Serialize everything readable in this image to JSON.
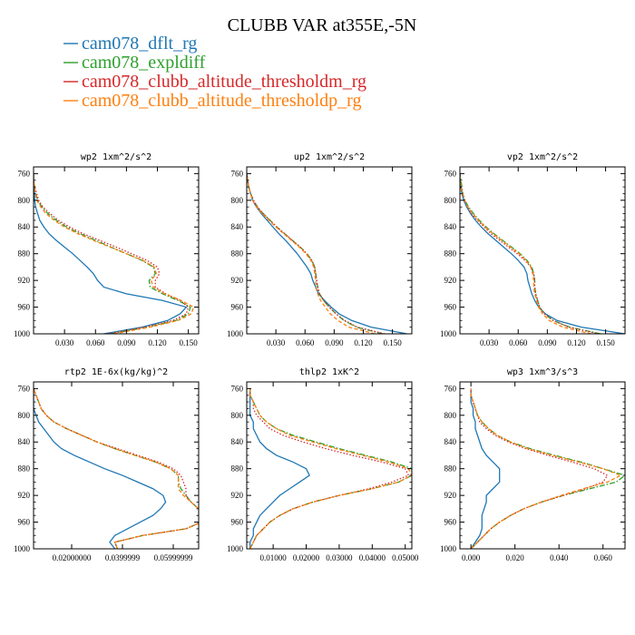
{
  "title": "CLUBB VAR at355E,-5N",
  "legend": [
    {
      "label": "cam078_dflt_rg",
      "color": "#1f77b4",
      "dash": "solid"
    },
    {
      "label": "cam078_expldiff",
      "color": "#2ca02c",
      "dash": "dashdot"
    },
    {
      "label": "cam078_clubb_altitude_thresholdm_rg",
      "color": "#d62728",
      "dash": "dotted"
    },
    {
      "label": "cam078_clubb_altitude_thresholdp_rg",
      "color": "#ff7f0e",
      "dash": "dashed"
    }
  ],
  "chart_data": [
    {
      "type": "line",
      "title": "wp2  1xm^2/s^2",
      "xlim": [
        0.0,
        0.16
      ],
      "ylim": [
        1000,
        750
      ],
      "xticks": [
        0.03,
        0.06,
        0.09,
        0.12,
        0.15
      ],
      "xtick_labels": [
        "0.030",
        "0.060",
        "0.090",
        "0.120",
        "0.150"
      ],
      "yticks": [
        760,
        800,
        840,
        880,
        920,
        960,
        1000
      ],
      "y": [
        1000,
        990,
        980,
        970,
        960,
        950,
        940,
        930,
        920,
        910,
        900,
        890,
        880,
        870,
        860,
        850,
        840,
        830,
        820,
        810,
        800,
        790,
        780,
        770,
        760
      ],
      "series": [
        {
          "values": [
            0.068,
            0.105,
            0.13,
            0.142,
            0.148,
            0.125,
            0.09,
            0.068,
            0.062,
            0.058,
            0.052,
            0.045,
            0.038,
            0.03,
            0.022,
            0.015,
            0.01,
            0.006,
            0.004,
            0.002,
            0.001,
            0.001,
            0.0,
            0.0,
            0.0
          ]
        },
        {
          "values": [
            0.075,
            0.11,
            0.138,
            0.15,
            0.152,
            0.14,
            0.125,
            0.113,
            0.112,
            0.118,
            0.116,
            0.105,
            0.09,
            0.075,
            0.06,
            0.045,
            0.032,
            0.022,
            0.014,
            0.008,
            0.004,
            0.002,
            0.001,
            0.0,
            0.0
          ]
        },
        {
          "values": [
            0.072,
            0.108,
            0.135,
            0.148,
            0.15,
            0.142,
            0.128,
            0.118,
            0.118,
            0.122,
            0.12,
            0.11,
            0.095,
            0.08,
            0.064,
            0.048,
            0.035,
            0.024,
            0.016,
            0.009,
            0.005,
            0.003,
            0.001,
            0.0,
            0.0
          ]
        },
        {
          "values": [
            0.078,
            0.113,
            0.14,
            0.153,
            0.155,
            0.143,
            0.127,
            0.116,
            0.114,
            0.119,
            0.117,
            0.106,
            0.09,
            0.074,
            0.058,
            0.043,
            0.03,
            0.02,
            0.012,
            0.007,
            0.003,
            0.002,
            0.001,
            0.0,
            0.0
          ]
        }
      ]
    },
    {
      "type": "line",
      "title": "up2  1xm^2/s^2",
      "xlim": [
        0.0,
        0.17
      ],
      "ylim": [
        1000,
        750
      ],
      "xticks": [
        0.03,
        0.06,
        0.09,
        0.12,
        0.15
      ],
      "xtick_labels": [
        "0.030",
        "0.060",
        "0.090",
        "0.120",
        "0.150"
      ],
      "yticks": [
        760,
        800,
        840,
        880,
        920,
        960,
        1000
      ],
      "y": [
        1000,
        990,
        980,
        970,
        960,
        950,
        940,
        930,
        920,
        910,
        900,
        890,
        880,
        870,
        860,
        850,
        840,
        830,
        820,
        810,
        800,
        790,
        780,
        770,
        760
      ],
      "series": [
        {
          "values": [
            0.165,
            0.128,
            0.108,
            0.095,
            0.087,
            0.08,
            0.074,
            0.071,
            0.068,
            0.066,
            0.062,
            0.057,
            0.052,
            0.046,
            0.04,
            0.033,
            0.027,
            0.021,
            0.015,
            0.01,
            0.006,
            0.004,
            0.002,
            0.001,
            0.0
          ]
        },
        {
          "values": [
            0.14,
            0.113,
            0.1,
            0.092,
            0.085,
            0.079,
            0.075,
            0.073,
            0.072,
            0.071,
            0.07,
            0.067,
            0.062,
            0.055,
            0.047,
            0.039,
            0.031,
            0.024,
            0.017,
            0.011,
            0.007,
            0.004,
            0.002,
            0.001,
            0.0
          ]
        },
        {
          "values": [
            0.142,
            0.114,
            0.101,
            0.092,
            0.085,
            0.079,
            0.075,
            0.073,
            0.072,
            0.071,
            0.07,
            0.067,
            0.062,
            0.055,
            0.047,
            0.039,
            0.031,
            0.024,
            0.017,
            0.011,
            0.007,
            0.004,
            0.002,
            0.001,
            0.0
          ]
        },
        {
          "values": [
            0.132,
            0.105,
            0.094,
            0.086,
            0.081,
            0.076,
            0.073,
            0.071,
            0.071,
            0.07,
            0.069,
            0.066,
            0.061,
            0.054,
            0.046,
            0.038,
            0.03,
            0.023,
            0.016,
            0.01,
            0.006,
            0.004,
            0.002,
            0.001,
            0.0
          ]
        }
      ]
    },
    {
      "type": "line",
      "title": "vp2  1xm^2/s^2",
      "xlim": [
        0.0,
        0.17
      ],
      "ylim": [
        1000,
        750
      ],
      "xticks": [
        0.03,
        0.06,
        0.09,
        0.12,
        0.15
      ],
      "xtick_labels": [
        "0.030",
        "0.060",
        "0.090",
        "0.120",
        "0.150"
      ],
      "yticks": [
        760,
        800,
        840,
        880,
        920,
        960,
        1000
      ],
      "y": [
        1000,
        990,
        980,
        970,
        960,
        950,
        940,
        930,
        920,
        910,
        900,
        890,
        880,
        870,
        860,
        850,
        840,
        830,
        820,
        810,
        800,
        790,
        780,
        770,
        760
      ],
      "series": [
        {
          "values": [
            0.17,
            0.125,
            0.1,
            0.088,
            0.081,
            0.077,
            0.074,
            0.072,
            0.07,
            0.069,
            0.066,
            0.06,
            0.053,
            0.045,
            0.037,
            0.029,
            0.022,
            0.016,
            0.011,
            0.007,
            0.004,
            0.002,
            0.001,
            0.0,
            0.0
          ]
        },
        {
          "values": [
            0.145,
            0.113,
            0.096,
            0.087,
            0.082,
            0.08,
            0.078,
            0.077,
            0.077,
            0.076,
            0.074,
            0.069,
            0.062,
            0.053,
            0.044,
            0.035,
            0.027,
            0.02,
            0.014,
            0.009,
            0.005,
            0.003,
            0.002,
            0.001,
            0.0
          ]
        },
        {
          "values": [
            0.143,
            0.112,
            0.096,
            0.087,
            0.082,
            0.08,
            0.078,
            0.077,
            0.077,
            0.076,
            0.073,
            0.067,
            0.059,
            0.05,
            0.041,
            0.032,
            0.025,
            0.018,
            0.012,
            0.008,
            0.005,
            0.003,
            0.001,
            0.0,
            0.0
          ]
        },
        {
          "values": [
            0.135,
            0.106,
            0.092,
            0.085,
            0.081,
            0.079,
            0.077,
            0.076,
            0.076,
            0.075,
            0.073,
            0.068,
            0.061,
            0.052,
            0.043,
            0.034,
            0.026,
            0.019,
            0.013,
            0.008,
            0.005,
            0.003,
            0.001,
            0.0,
            0.0
          ]
        }
      ]
    },
    {
      "type": "line",
      "title": "rtp2  1E-6x(kg/kg)^2",
      "xlim": [
        0.005,
        0.07
      ],
      "ylim": [
        1000,
        750
      ],
      "xticks": [
        0.02,
        0.04,
        0.06
      ],
      "xtick_labels": [
        "0.02000000",
        "0.0399999",
        "0.05999999"
      ],
      "yticks": [
        760,
        800,
        840,
        880,
        920,
        960,
        1000
      ],
      "y": [
        1000,
        990,
        980,
        970,
        960,
        950,
        940,
        930,
        920,
        910,
        900,
        890,
        880,
        870,
        860,
        850,
        840,
        830,
        820,
        810,
        800,
        790,
        780,
        770,
        760
      ],
      "series": [
        {
          "values": [
            0.037,
            0.035,
            0.037,
            0.042,
            0.047,
            0.052,
            0.055,
            0.057,
            0.056,
            0.052,
            0.046,
            0.04,
            0.033,
            0.027,
            0.021,
            0.016,
            0.013,
            0.011,
            0.009,
            0.007,
            0.006,
            0.005,
            0.005,
            0.005,
            0.005
          ]
        },
        {
          "values": [
            0.038,
            0.037,
            0.048,
            0.065,
            0.071,
            0.072,
            0.07,
            0.067,
            0.065,
            0.063,
            0.062,
            0.062,
            0.059,
            0.053,
            0.045,
            0.037,
            0.03,
            0.024,
            0.018,
            0.013,
            0.01,
            0.008,
            0.007,
            0.006,
            0.005
          ]
        },
        {
          "values": [
            0.038,
            0.037,
            0.048,
            0.065,
            0.071,
            0.072,
            0.07,
            0.067,
            0.065,
            0.065,
            0.064,
            0.063,
            0.06,
            0.054,
            0.046,
            0.038,
            0.03,
            0.024,
            0.018,
            0.013,
            0.01,
            0.008,
            0.007,
            0.006,
            0.005
          ]
        },
        {
          "values": [
            0.038,
            0.037,
            0.048,
            0.065,
            0.071,
            0.072,
            0.07,
            0.067,
            0.064,
            0.062,
            0.062,
            0.062,
            0.059,
            0.053,
            0.045,
            0.037,
            0.03,
            0.024,
            0.018,
            0.013,
            0.01,
            0.008,
            0.007,
            0.006,
            0.005
          ]
        }
      ]
    },
    {
      "type": "line",
      "title": "thlp2  1xK^2",
      "xlim": [
        0.002,
        0.052
      ],
      "ylim": [
        1000,
        750
      ],
      "xticks": [
        0.01,
        0.02,
        0.03,
        0.04,
        0.05
      ],
      "xtick_labels": [
        "0.01000",
        "0.02000",
        "0.03000",
        "0.04000",
        "0.05000"
      ],
      "yticks": [
        760,
        800,
        840,
        880,
        920,
        960,
        1000
      ],
      "y": [
        1000,
        990,
        980,
        970,
        960,
        950,
        940,
        930,
        920,
        910,
        900,
        890,
        880,
        870,
        860,
        850,
        840,
        830,
        820,
        810,
        800,
        790,
        780,
        770,
        760
      ],
      "series": [
        {
          "values": [
            0.003,
            0.003,
            0.004,
            0.004,
            0.005,
            0.006,
            0.008,
            0.01,
            0.012,
            0.015,
            0.018,
            0.021,
            0.02,
            0.016,
            0.011,
            0.008,
            0.006,
            0.005,
            0.004,
            0.004,
            0.003,
            0.003,
            0.003,
            0.003,
            0.003
          ]
        },
        {
          "values": [
            0.003,
            0.004,
            0.005,
            0.007,
            0.009,
            0.012,
            0.016,
            0.022,
            0.03,
            0.04,
            0.048,
            0.052,
            0.052,
            0.046,
            0.038,
            0.03,
            0.023,
            0.016,
            0.011,
            0.008,
            0.006,
            0.005,
            0.004,
            0.003,
            0.003
          ]
        },
        {
          "values": [
            0.003,
            0.004,
            0.005,
            0.007,
            0.009,
            0.012,
            0.016,
            0.022,
            0.03,
            0.039,
            0.046,
            0.051,
            0.05,
            0.043,
            0.034,
            0.026,
            0.019,
            0.013,
            0.009,
            0.007,
            0.005,
            0.004,
            0.004,
            0.003,
            0.003
          ]
        },
        {
          "values": [
            0.003,
            0.004,
            0.005,
            0.007,
            0.009,
            0.012,
            0.016,
            0.022,
            0.03,
            0.04,
            0.048,
            0.052,
            0.051,
            0.045,
            0.037,
            0.029,
            0.022,
            0.015,
            0.011,
            0.008,
            0.006,
            0.005,
            0.004,
            0.003,
            0.003
          ]
        }
      ]
    },
    {
      "type": "line",
      "title": "wp3  1xm^3/s^3",
      "xlim": [
        -0.005,
        0.07
      ],
      "ylim": [
        1000,
        750
      ],
      "xticks": [
        0.0,
        0.02,
        0.04,
        0.06
      ],
      "xtick_labels": [
        "0.000",
        "0.020",
        "0.040",
        "0.060"
      ],
      "yticks": [
        760,
        800,
        840,
        880,
        920,
        960,
        1000
      ],
      "y": [
        1000,
        990,
        980,
        970,
        960,
        950,
        940,
        930,
        920,
        910,
        900,
        890,
        880,
        870,
        860,
        850,
        840,
        830,
        820,
        810,
        800,
        790,
        780,
        770,
        760
      ],
      "series": [
        {
          "values": [
            0.0,
            0.002,
            0.004,
            0.005,
            0.005,
            0.005,
            0.006,
            0.007,
            0.007,
            0.01,
            0.013,
            0.013,
            0.013,
            0.01,
            0.007,
            0.005,
            0.004,
            0.003,
            0.002,
            0.002,
            0.001,
            0.001,
            0.0,
            0.0,
            0.0
          ]
        },
        {
          "values": [
            0.0,
            0.003,
            0.006,
            0.009,
            0.013,
            0.018,
            0.024,
            0.032,
            0.042,
            0.054,
            0.066,
            0.07,
            0.06,
            0.05,
            0.038,
            0.027,
            0.018,
            0.012,
            0.008,
            0.005,
            0.003,
            0.002,
            0.001,
            0.0,
            0.0
          ]
        },
        {
          "values": [
            0.0,
            0.003,
            0.006,
            0.009,
            0.013,
            0.018,
            0.024,
            0.032,
            0.042,
            0.052,
            0.06,
            0.062,
            0.056,
            0.046,
            0.035,
            0.025,
            0.017,
            0.011,
            0.007,
            0.004,
            0.003,
            0.002,
            0.001,
            0.0,
            0.0
          ]
        },
        {
          "values": [
            0.0,
            0.003,
            0.006,
            0.009,
            0.013,
            0.018,
            0.024,
            0.032,
            0.041,
            0.051,
            0.062,
            0.068,
            0.06,
            0.049,
            0.037,
            0.026,
            0.018,
            0.012,
            0.008,
            0.005,
            0.003,
            0.002,
            0.001,
            0.0,
            0.0
          ]
        }
      ]
    }
  ]
}
